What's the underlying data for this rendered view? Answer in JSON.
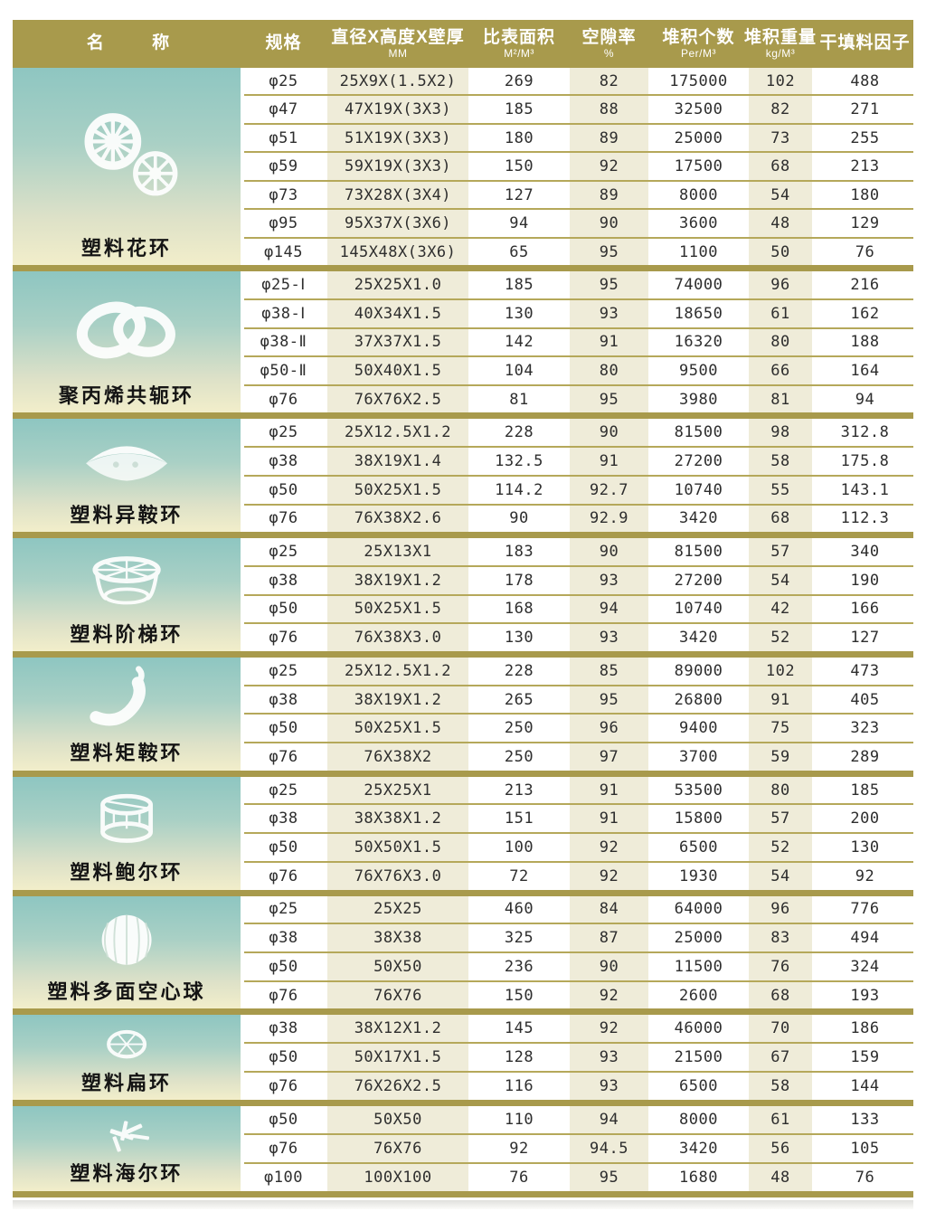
{
  "header": {
    "columns": [
      {
        "label": "名 称",
        "unit": ""
      },
      {
        "label": "规格",
        "unit": ""
      },
      {
        "label": "直径X高度X壁厚",
        "unit": "MM"
      },
      {
        "label": "比表面积",
        "unit": "M²/M³"
      },
      {
        "label": "空隙率",
        "unit": "%"
      },
      {
        "label": "堆积个数",
        "unit": "Per/M³"
      },
      {
        "label": "堆积重量",
        "unit": "kg/M³"
      },
      {
        "label": "干填料因子",
        "unit": ""
      }
    ]
  },
  "colors": {
    "accent_olive": "#a89a4c",
    "row_line": "#b5a85a",
    "cream_cell": "#efecd9",
    "panel_top": "#8ec6c1",
    "panel_bottom": "#f2eeca"
  },
  "groups": [
    {
      "name": "塑料花环",
      "icon": "flower-ring",
      "rows": [
        {
          "spec": "φ25",
          "size": "25X9X(1.5X2)",
          "surface": "269",
          "voidage": "82",
          "count": "175000",
          "weight": "102",
          "factor": "488"
        },
        {
          "spec": "φ47",
          "size": "47X19X(3X3)",
          "surface": "185",
          "voidage": "88",
          "count": "32500",
          "weight": "82",
          "factor": "271"
        },
        {
          "spec": "φ51",
          "size": "51X19X(3X3)",
          "surface": "180",
          "voidage": "89",
          "count": "25000",
          "weight": "73",
          "factor": "255"
        },
        {
          "spec": "φ59",
          "size": "59X19X(3X3)",
          "surface": "150",
          "voidage": "92",
          "count": "17500",
          "weight": "68",
          "factor": "213"
        },
        {
          "spec": "φ73",
          "size": "73X28X(3X4)",
          "surface": "127",
          "voidage": "89",
          "count": "8000",
          "weight": "54",
          "factor": "180"
        },
        {
          "spec": "φ95",
          "size": "95X37X(3X6)",
          "surface": "94",
          "voidage": "90",
          "count": "3600",
          "weight": "48",
          "factor": "129"
        },
        {
          "spec": "φ145",
          "size": "145X48X(3X6)",
          "surface": "65",
          "voidage": "95",
          "count": "1100",
          "weight": "50",
          "factor": "76"
        }
      ]
    },
    {
      "name": "聚丙烯共轭环",
      "icon": "conjugate-ring",
      "rows": [
        {
          "spec": "φ25-Ⅰ",
          "size": "25X25X1.0",
          "surface": "185",
          "voidage": "95",
          "count": "74000",
          "weight": "96",
          "factor": "216"
        },
        {
          "spec": "φ38-Ⅰ",
          "size": "40X34X1.5",
          "surface": "130",
          "voidage": "93",
          "count": "18650",
          "weight": "61",
          "factor": "162"
        },
        {
          "spec": "φ38-Ⅱ",
          "size": "37X37X1.5",
          "surface": "142",
          "voidage": "91",
          "count": "16320",
          "weight": "80",
          "factor": "188"
        },
        {
          "spec": "φ50-Ⅱ",
          "size": "50X40X1.5",
          "surface": "104",
          "voidage": "80",
          "count": "9500",
          "weight": "66",
          "factor": "164"
        },
        {
          "spec": "φ76",
          "size": "76X76X2.5",
          "surface": "81",
          "voidage": "95",
          "count": "3980",
          "weight": "81",
          "factor": "94"
        }
      ]
    },
    {
      "name": "塑料异鞍环",
      "icon": "saddle-ring",
      "rows": [
        {
          "spec": "φ25",
          "size": "25X12.5X1.2",
          "surface": "228",
          "voidage": "90",
          "count": "81500",
          "weight": "98",
          "factor": "312.8"
        },
        {
          "spec": "φ38",
          "size": "38X19X1.4",
          "surface": "132.5",
          "voidage": "91",
          "count": "27200",
          "weight": "58",
          "factor": "175.8"
        },
        {
          "spec": "φ50",
          "size": "50X25X1.5",
          "surface": "114.2",
          "voidage": "92.7",
          "count": "10740",
          "weight": "55",
          "factor": "143.1"
        },
        {
          "spec": "φ76",
          "size": "76X38X2.6",
          "surface": "90",
          "voidage": "92.9",
          "count": "3420",
          "weight": "68",
          "factor": "112.3"
        }
      ]
    },
    {
      "name": "塑料阶梯环",
      "icon": "cascade-ring",
      "rows": [
        {
          "spec": "φ25",
          "size": "25X13X1",
          "surface": "183",
          "voidage": "90",
          "count": "81500",
          "weight": "57",
          "factor": "340"
        },
        {
          "spec": "φ38",
          "size": "38X19X1.2",
          "surface": "178",
          "voidage": "93",
          "count": "27200",
          "weight": "54",
          "factor": "190"
        },
        {
          "spec": "φ50",
          "size": "50X25X1.5",
          "surface": "168",
          "voidage": "94",
          "count": "10740",
          "weight": "42",
          "factor": "166"
        },
        {
          "spec": "φ76",
          "size": "76X38X3.0",
          "surface": "130",
          "voidage": "93",
          "count": "3420",
          "weight": "52",
          "factor": "127"
        }
      ]
    },
    {
      "name": "塑料矩鞍环",
      "icon": "intalox-saddle",
      "rows": [
        {
          "spec": "φ25",
          "size": "25X12.5X1.2",
          "surface": "228",
          "voidage": "85",
          "count": "89000",
          "weight": "102",
          "factor": "473"
        },
        {
          "spec": "φ38",
          "size": "38X19X1.2",
          "surface": "265",
          "voidage": "95",
          "count": "26800",
          "weight": "91",
          "factor": "405"
        },
        {
          "spec": "φ50",
          "size": "50X25X1.5",
          "surface": "250",
          "voidage": "96",
          "count": "9400",
          "weight": "75",
          "factor": "323"
        },
        {
          "spec": "φ76",
          "size": "76X38X2",
          "surface": "250",
          "voidage": "97",
          "count": "3700",
          "weight": "59",
          "factor": "289"
        }
      ]
    },
    {
      "name": "塑料鲍尔环",
      "icon": "pall-ring",
      "rows": [
        {
          "spec": "φ25",
          "size": "25X25X1",
          "surface": "213",
          "voidage": "91",
          "count": "53500",
          "weight": "80",
          "factor": "185"
        },
        {
          "spec": "φ38",
          "size": "38X38X1.2",
          "surface": "151",
          "voidage": "91",
          "count": "15800",
          "weight": "57",
          "factor": "200"
        },
        {
          "spec": "φ50",
          "size": "50X50X1.5",
          "surface": "100",
          "voidage": "92",
          "count": "6500",
          "weight": "52",
          "factor": "130"
        },
        {
          "spec": "φ76",
          "size": "76X76X3.0",
          "surface": "72",
          "voidage": "92",
          "count": "1930",
          "weight": "54",
          "factor": "92"
        }
      ]
    },
    {
      "name": "塑料多面空心球",
      "icon": "hollow-ball",
      "rows": [
        {
          "spec": "φ25",
          "size": "25X25",
          "surface": "460",
          "voidage": "84",
          "count": "64000",
          "weight": "96",
          "factor": "776"
        },
        {
          "spec": "φ38",
          "size": "38X38",
          "surface": "325",
          "voidage": "87",
          "count": "25000",
          "weight": "83",
          "factor": "494"
        },
        {
          "spec": "φ50",
          "size": "50X50",
          "surface": "236",
          "voidage": "90",
          "count": "11500",
          "weight": "76",
          "factor": "324"
        },
        {
          "spec": "φ76",
          "size": "76X76",
          "surface": "150",
          "voidage": "92",
          "count": "2600",
          "weight": "68",
          "factor": "193"
        }
      ]
    },
    {
      "name": "塑料扁环",
      "icon": "flat-ring",
      "rows": [
        {
          "spec": "φ38",
          "size": "38X12X1.2",
          "surface": "145",
          "voidage": "92",
          "count": "46000",
          "weight": "70",
          "factor": "186"
        },
        {
          "spec": "φ50",
          "size": "50X17X1.5",
          "surface": "128",
          "voidage": "93",
          "count": "21500",
          "weight": "67",
          "factor": "159"
        },
        {
          "spec": "φ76",
          "size": "76X26X2.5",
          "surface": "116",
          "voidage": "93",
          "count": "6500",
          "weight": "58",
          "factor": "144"
        }
      ]
    },
    {
      "name": "塑料海尔环",
      "icon": "hel-ring",
      "rows": [
        {
          "spec": "φ50",
          "size": "50X50",
          "surface": "110",
          "voidage": "94",
          "count": "8000",
          "weight": "61",
          "factor": "133"
        },
        {
          "spec": "φ76",
          "size": "76X76",
          "surface": "92",
          "voidage": "94.5",
          "count": "3420",
          "weight": "56",
          "factor": "105"
        },
        {
          "spec": "φ100",
          "size": "100X100",
          "surface": "76",
          "voidage": "95",
          "count": "1680",
          "weight": "48",
          "factor": "76"
        }
      ]
    }
  ]
}
